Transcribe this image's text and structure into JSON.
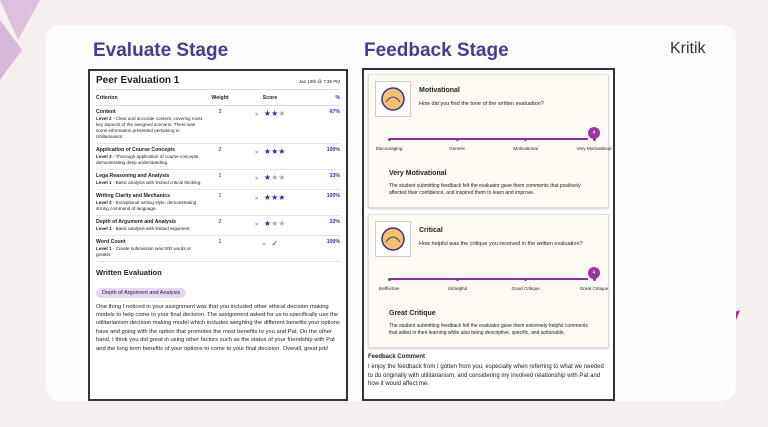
{
  "header": {
    "evaluate_title": "Evaluate Stage",
    "feedback_title": "Feedback Stage",
    "brand": "Kritik"
  },
  "peer_evaluation": {
    "title": "Peer Evaluation 1",
    "date": "Jan 19th @ 7:35 PM",
    "columns": [
      "Criterion",
      "Weight",
      "Score",
      "%"
    ],
    "score_max": 3,
    "rows": [
      {
        "name": "Content",
        "level": "Level 2",
        "description": "- Clear and accurate content, covering most key aspects of the assigned scenario. There was some information presented pertaining to Utilitarianism.",
        "weight": 3,
        "display": "stars",
        "score": 2,
        "percent": "67%"
      },
      {
        "name": "Application of Course Concepts",
        "level": "Level 3",
        "description": "- Thorough application of course concepts, demonstrating deep understanding.",
        "weight": 2,
        "display": "stars",
        "score": 3,
        "percent": "100%"
      },
      {
        "name": "Lega Reasoning and Analysis",
        "level": "Level 1",
        "description": "- Basic analysis with limited critical thinking.",
        "weight": 1,
        "display": "stars",
        "score": 1,
        "percent": "33%"
      },
      {
        "name": "Writing Clarity and Mechanics",
        "level": "Level 3",
        "description": "- Exceptional writing style, demonstrating strong command of language.",
        "weight": 1,
        "display": "stars",
        "score": 3,
        "percent": "100%"
      },
      {
        "name": "Depth of Argument and Analysis",
        "level": "Level 1",
        "description": "- Basic analysis with limited argument.",
        "weight": 2,
        "display": "stars",
        "score": 1,
        "percent": "33%"
      },
      {
        "name": "Word Count",
        "level": "Level 1",
        "description": "- Create submission was 500 words or greater.",
        "weight": 1,
        "display": "check",
        "percent": "100%"
      }
    ]
  },
  "written_evaluation": {
    "title": "Written Evaluation",
    "tag": "Depth of Argument and Analysis",
    "body": "One thing I noticed in your assignment was that you included other ethical decision making models to help come to your final decision. The assignment asked for us to specifically use the utilitarianism decision making model which includes weighing the different benefits your options have and going with the option that promotes the most benefits to you and Pat. On the other hand, I think you did great in using other factors such as the status of your friendship with Pat and the long term benefits of your options to come to your final decision. Overall, great job!"
  },
  "feedback_cards": [
    {
      "title": "Motivational",
      "question": "How did you find the tone of the written evaluation?",
      "scale": [
        "Discouraging",
        "Generic",
        "Motivational",
        "Very Motivational"
      ],
      "rating": 4,
      "result_title": "Very Motivational",
      "result_text": "The student submitting feedback felt the evaluator gave them comments that positively affected their confidence, and inspired them to learn and improve."
    },
    {
      "title": "Critical",
      "question": "How helpful was the critique you received in the written evaluation?",
      "scale": [
        "Ineffective",
        "Unhelpful",
        "Good Critique",
        "Great Critique"
      ],
      "rating": 4,
      "result_title": "Great Critique",
      "result_text": "The student submitting feedback felt the evaluator gave them extremely helpful comments that aided in their learning while also being descriptive, specific, and actionable."
    }
  ],
  "feedback_comment": {
    "title": "Feedback Comment",
    "body": "I enjoy the feedback from I gotten from you, especially when referring to what we needed to do originally with utilitarianism, and considering my involved relationship with Pat and how it would affect me."
  }
}
